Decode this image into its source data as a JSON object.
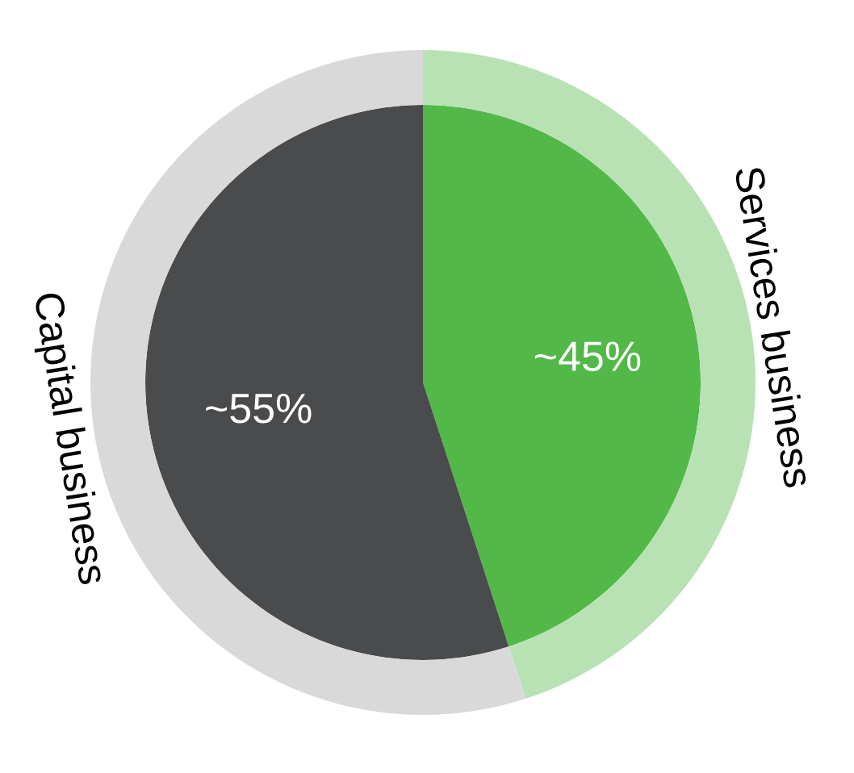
{
  "chart_data": {
    "type": "pie",
    "categories": [
      "Services business",
      "Capital business"
    ],
    "value_labels": [
      "~45%",
      "~55%"
    ],
    "series": [
      {
        "values": [
          45,
          55
        ],
        "colors": [
          "#52b848",
          "#4a4b4d"
        ]
      },
      {
        "values": [
          45,
          55
        ],
        "colors": [
          "#b8e2b4",
          "#d9d9d9"
        ]
      }
    ]
  }
}
